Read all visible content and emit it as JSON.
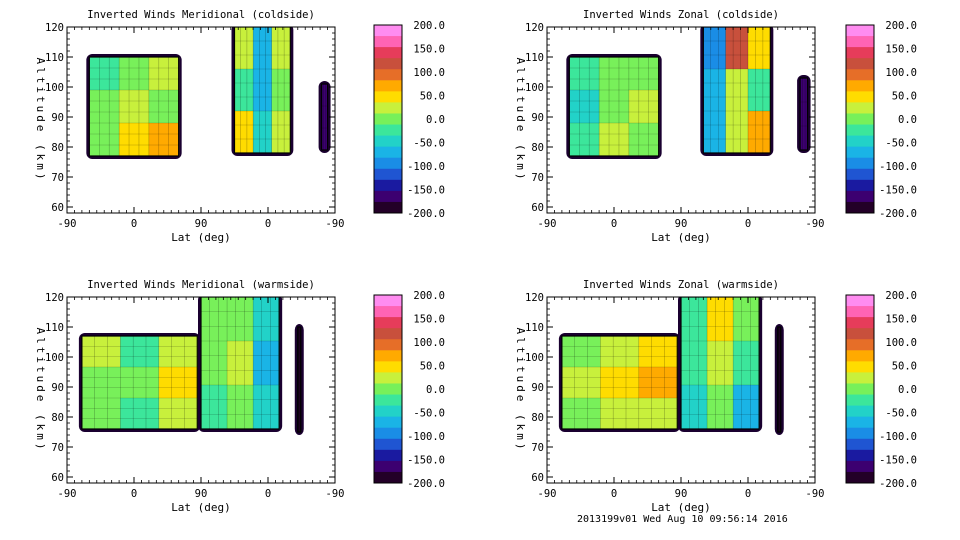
{
  "chart_data": [
    {
      "type": "heatmap",
      "title": "Inverted Winds Meridional (coldside)",
      "xlabel": "Lat (deg)",
      "ylabel": "Altitude (km)",
      "xticks": [
        "-90",
        "0",
        "90",
        "0",
        "-90"
      ],
      "yticks": [
        "60",
        "70",
        "80",
        "90",
        "100",
        "110",
        "120"
      ],
      "ylim": [
        58,
        120
      ],
      "colorbar_ticks": [
        "200.0",
        "150.0",
        "100.0",
        "50.0",
        "0.0",
        "-50.0",
        "-100.0",
        "-150.0",
        "-200.0"
      ],
      "zlim": [
        -200,
        200
      ],
      "blocks": [
        {
          "x": [
            -60,
            60
          ],
          "y": [
            77,
            110
          ],
          "levels": [
            [
              -20,
              0,
              20
            ],
            [
              0,
              30,
              10
            ],
            [
              -10,
              40,
              80
            ]
          ]
        },
        {
          "x": [
            135,
            210
          ],
          "y": [
            78,
            120
          ],
          "levels": [
            [
              20,
              -80,
              30
            ],
            [
              -20,
              -60,
              10
            ],
            [
              40,
              -50,
              20
            ]
          ]
        },
        {
          "x": [
            252,
            260
          ],
          "y": [
            79,
            101
          ],
          "levels": [
            [
              -160
            ]
          ]
        }
      ]
    },
    {
      "type": "heatmap",
      "title": "Inverted Winds Zonal (coldside)",
      "xlabel": "Lat (deg)",
      "ylabel": "Altitude (km)",
      "xticks": [
        "-90",
        "0",
        "90",
        "0",
        "-90"
      ],
      "yticks": [
        "60",
        "70",
        "80",
        "90",
        "100",
        "110",
        "120"
      ],
      "ylim": [
        58,
        120
      ],
      "colorbar_ticks": [
        "200.0",
        "150.0",
        "100.0",
        "50.0",
        "0.0",
        "-50.0",
        "-100.0",
        "-150.0",
        "-200.0"
      ],
      "zlim": [
        -200,
        200
      ],
      "blocks": [
        {
          "x": [
            -60,
            60
          ],
          "y": [
            77,
            110
          ],
          "levels": [
            [
              -20,
              10,
              -10
            ],
            [
              -40,
              0,
              20
            ],
            [
              -30,
              20,
              10
            ]
          ]
        },
        {
          "x": [
            120,
            210
          ],
          "y": [
            78,
            120
          ],
          "levels": [
            [
              -90,
              120,
              40
            ],
            [
              -60,
              20,
              -30
            ],
            [
              -80,
              30,
              60
            ]
          ]
        },
        {
          "x": [
            250,
            260
          ],
          "y": [
            79,
            103
          ],
          "levels": [
            [
              -160
            ]
          ]
        }
      ]
    },
    {
      "type": "heatmap",
      "title": "Inverted Winds Meridional (warmside)",
      "xlabel": "Lat (deg)",
      "ylabel": "Altitude (km)",
      "xticks": [
        "-90",
        "0",
        "90",
        "0",
        "-90"
      ],
      "yticks": [
        "60",
        "70",
        "80",
        "90",
        "100",
        "110",
        "120"
      ],
      "ylim": [
        58,
        120
      ],
      "colorbar_ticks": [
        "200.0",
        "150.0",
        "100.0",
        "50.0",
        "0.0",
        "-50.0",
        "-100.0",
        "-150.0",
        "-200.0"
      ],
      "zlim": [
        -200,
        200
      ],
      "blocks": [
        {
          "x": [
            -70,
            85
          ],
          "y": [
            76,
            107
          ],
          "levels": [
            [
              20,
              -20,
              30
            ],
            [
              -10,
              0,
              40
            ],
            [
              10,
              -30,
              20
            ]
          ]
        },
        {
          "x": [
            90,
            195
          ],
          "y": [
            76,
            120
          ],
          "levels": [
            [
              -10,
              10,
              -40
            ],
            [
              0,
              20,
              -60
            ],
            [
              -20,
              10,
              -50
            ]
          ]
        },
        {
          "x": [
            220,
            224
          ],
          "y": [
            75,
            110
          ],
          "levels": [
            [
              -200
            ]
          ]
        }
      ]
    },
    {
      "type": "heatmap",
      "title": "Inverted Winds Zonal (warmside)",
      "xlabel": "Lat (deg)",
      "ylabel": "Altitude (km)",
      "xticks": [
        "-90",
        "0",
        "90",
        "0",
        "-90"
      ],
      "yticks": [
        "60",
        "70",
        "80",
        "90",
        "100",
        "110",
        "120"
      ],
      "ylim": [
        58,
        120
      ],
      "colorbar_ticks": [
        "200.0",
        "150.0",
        "100.0",
        "50.0",
        "0.0",
        "-50.0",
        "-100.0",
        "-150.0",
        "-200.0"
      ],
      "zlim": [
        -200,
        200
      ],
      "blocks": [
        {
          "x": [
            -70,
            85
          ],
          "y": [
            76,
            107
          ],
          "levels": [
            [
              0,
              20,
              40
            ],
            [
              20,
              40,
              60
            ],
            [
              -10,
              30,
              20
            ]
          ]
        },
        {
          "x": [
            90,
            195
          ],
          "y": [
            76,
            120
          ],
          "levels": [
            [
              -30,
              40,
              0
            ],
            [
              -20,
              30,
              -30
            ],
            [
              -40,
              10,
              -60
            ]
          ]
        },
        {
          "x": [
            220,
            224
          ],
          "y": [
            75,
            110
          ],
          "levels": [
            [
              -200
            ]
          ]
        }
      ]
    }
  ],
  "footer": "2013199v01 Wed Aug 10 09:56:14 2016",
  "colormap": [
    "#230028",
    "#3c0070",
    "#1a1aa0",
    "#1f55d2",
    "#1a8de6",
    "#1ab4e6",
    "#22d2c8",
    "#3ce69b",
    "#78f05a",
    "#c8f03c",
    "#ffdc00",
    "#ffaa00",
    "#e66e28",
    "#c8503c",
    "#e63c5a",
    "#ff64b4",
    "#ff8cf0"
  ]
}
